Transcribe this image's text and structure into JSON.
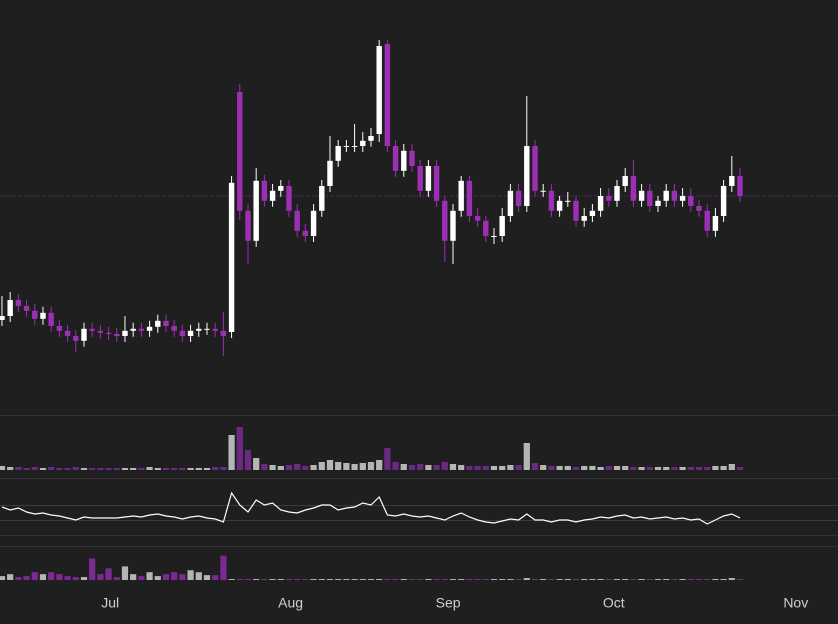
{
  "chart_data": [
    {
      "type": "candlestick",
      "x": [
        0,
        1,
        2,
        3,
        4,
        5,
        6,
        7,
        8,
        9,
        10,
        11,
        12,
        13,
        14,
        15,
        16,
        17,
        18,
        19,
        20,
        21,
        22,
        23,
        24,
        25,
        26,
        27,
        28,
        29,
        30,
        31,
        32,
        33,
        34,
        35,
        36,
        37,
        38,
        39,
        40,
        41,
        42,
        43,
        44,
        45,
        46,
        47,
        48,
        49,
        50,
        51,
        52,
        53,
        54,
        55,
        56,
        57,
        58,
        59,
        60,
        61,
        62,
        63,
        64,
        65,
        66,
        67,
        68,
        69,
        70,
        71,
        72,
        73,
        74,
        75,
        76,
        77,
        78,
        79,
        80,
        81,
        82,
        83,
        84,
        85,
        86,
        87,
        88,
        89,
        90
      ],
      "open": [
        24,
        25,
        29,
        27.5,
        26.3,
        24.3,
        25.8,
        22.5,
        21.3,
        20,
        18.8,
        21.8,
        21.3,
        20.8,
        20.5,
        20,
        21.3,
        21.8,
        21.3,
        22.3,
        23.8,
        22.5,
        21.3,
        20,
        21.3,
        21.8,
        21.8,
        21.3,
        21,
        81,
        51.3,
        43.8,
        58.8,
        53.8,
        56.3,
        57.5,
        51.3,
        46.3,
        45,
        51.3,
        57.5,
        63.8,
        67.5,
        67.5,
        67.5,
        68.8,
        70.5,
        93,
        67.5,
        61.3,
        66.3,
        62.5,
        56.3,
        62.5,
        53.8,
        43.8,
        51.3,
        58.8,
        50,
        48.8,
        45,
        45,
        50,
        56.3,
        52.5,
        67.5,
        56.3,
        56.3,
        51.3,
        53.8,
        53.8,
        48.8,
        50,
        51.3,
        55,
        53.8,
        57.5,
        60,
        53.8,
        56.3,
        52.5,
        53.8,
        56.3,
        53.8,
        55,
        52.5,
        51.3,
        46.3,
        50,
        57.5,
        60
      ],
      "high": [
        30,
        31,
        30.5,
        29,
        28,
        27.3,
        27.3,
        24,
        22.8,
        21.5,
        23.3,
        23.3,
        22.8,
        22.3,
        22,
        25,
        23.3,
        23.3,
        23.8,
        25.3,
        25.3,
        24,
        22.8,
        22.8,
        23.3,
        23.3,
        23.3,
        26,
        60,
        83,
        53,
        62,
        60.3,
        58,
        59,
        59,
        53,
        48,
        53,
        59,
        70,
        69,
        69,
        73,
        71,
        72,
        94,
        94,
        69,
        68,
        68,
        64,
        64,
        64,
        55,
        53,
        60,
        60,
        52,
        50,
        47,
        52,
        58,
        58,
        80,
        69,
        58,
        58,
        55,
        56,
        55,
        52,
        53,
        57,
        57,
        59,
        62,
        64,
        58,
        58,
        55,
        58,
        58,
        57,
        57,
        54,
        53,
        52,
        59,
        65,
        62
      ],
      "low": [
        22.5,
        23.5,
        26,
        24.8,
        22.8,
        22.8,
        21,
        19.8,
        18.5,
        16,
        17.3,
        19.8,
        19.3,
        19,
        18.5,
        18.5,
        19.8,
        19.8,
        19.8,
        20.8,
        21,
        19.8,
        18.5,
        18.5,
        19.8,
        20.3,
        19.8,
        15,
        19.5,
        49,
        38,
        42.3,
        52.3,
        52.3,
        54.8,
        49.8,
        44.8,
        43.5,
        43.5,
        49.8,
        56,
        62.3,
        66,
        66,
        66,
        67.3,
        68.5,
        66,
        59.8,
        59.8,
        61,
        54.8,
        54.8,
        52.3,
        38.5,
        38,
        49.8,
        48.5,
        47.3,
        43.5,
        43,
        43.5,
        48.5,
        51,
        51,
        54.8,
        54.8,
        49.8,
        49.8,
        52.3,
        47.3,
        47.3,
        48.5,
        49.8,
        52.3,
        52.3,
        56,
        52.3,
        52.3,
        51,
        51,
        52.3,
        52.3,
        52.3,
        51,
        49.8,
        44.8,
        44.8,
        48.5,
        56,
        53.5
      ],
      "close": [
        25,
        29,
        27.5,
        26.3,
        24.3,
        25.8,
        22.5,
        21.3,
        20,
        18.8,
        21.8,
        21.3,
        20.8,
        20.5,
        20,
        21.3,
        21.8,
        21.3,
        22.3,
        23.8,
        22.5,
        21.3,
        20,
        21.3,
        21.8,
        21.8,
        21.3,
        20,
        58.3,
        51.3,
        43.8,
        58.8,
        53.8,
        56.3,
        57.5,
        51.3,
        46.3,
        45,
        51.3,
        57.5,
        63.8,
        67.5,
        67.5,
        67.5,
        68.8,
        70,
        92.5,
        67.5,
        61.3,
        66.3,
        62.5,
        56.3,
        62.5,
        53.8,
        43.8,
        51.3,
        58.8,
        50,
        48.8,
        45,
        45,
        50,
        56.3,
        52.5,
        67.5,
        56.3,
        56.3,
        51.3,
        53.8,
        53.8,
        48.8,
        50,
        51.3,
        55,
        53.8,
        57.5,
        60,
        53.8,
        56.3,
        52.5,
        53.8,
        56.3,
        53.8,
        55,
        52.5,
        51.3,
        46.3,
        50,
        57.5,
        60,
        55
      ],
      "xlim": [
        -0.24,
        101.95
      ],
      "xticks": [
        {
          "value": 13.2,
          "label": "Jul"
        },
        {
          "value": 35.2,
          "label": "Aug"
        },
        {
          "value": 54.4,
          "label": "Sep"
        },
        {
          "value": 74.6,
          "label": "Oct"
        },
        {
          "value": 96.8,
          "label": "Nov"
        }
      ],
      "ylim": [
        0,
        104
      ],
      "up_color": "#ffffff",
      "down_color": "#9c2fb3"
    },
    {
      "type": "bar",
      "values": [
        4,
        3,
        3,
        2,
        3,
        2,
        3,
        2,
        2,
        3,
        2,
        2,
        2,
        2,
        2,
        2,
        2,
        2,
        3,
        2,
        2,
        2,
        2,
        2,
        2,
        2,
        3,
        3,
        35,
        43,
        20,
        12,
        6,
        5,
        4,
        5,
        6,
        4,
        5,
        8,
        10,
        8,
        7,
        6,
        7,
        8,
        10,
        22,
        8,
        6,
        5,
        6,
        5,
        5,
        8,
        6,
        5,
        4,
        4,
        4,
        4,
        4,
        5,
        5,
        27,
        7,
        5,
        4,
        4,
        4,
        3,
        4,
        4,
        3,
        4,
        4,
        4,
        3,
        3,
        3,
        3,
        3,
        3,
        3,
        3,
        3,
        3,
        4,
        4,
        6,
        3
      ],
      "ylim": [
        0,
        55
      ],
      "up_color": "#b5b5b5",
      "down_color": "#6b2a82"
    },
    {
      "type": "line",
      "values": [
        28,
        25,
        27,
        23,
        21,
        22,
        20,
        19,
        17,
        15,
        18,
        17,
        17,
        17,
        17,
        18,
        19,
        18,
        20,
        21,
        19,
        18,
        16,
        18,
        19,
        17,
        16,
        13,
        42,
        30,
        23,
        35,
        30,
        32,
        25,
        23,
        22,
        25,
        27,
        30,
        30,
        25,
        27,
        28,
        32,
        30,
        38,
        20,
        19,
        21,
        19,
        18,
        19,
        17,
        15,
        19,
        22,
        18,
        15,
        13,
        12,
        14,
        16,
        15,
        21,
        15,
        15,
        13,
        15,
        15,
        13,
        15,
        16,
        18,
        17,
        19,
        20,
        17,
        18,
        16,
        17,
        18,
        16,
        17,
        15,
        16,
        11,
        15,
        19,
        21,
        17
      ],
      "ylim": [
        0,
        57
      ],
      "color": "#ffffff"
    },
    {
      "type": "bar",
      "values": [
        4,
        6,
        3,
        4,
        8,
        6,
        8,
        6,
        4,
        3,
        3,
        22,
        6,
        12,
        3,
        14,
        6,
        4,
        8,
        4,
        6,
        8,
        6,
        10,
        8,
        5,
        5,
        25,
        1,
        1,
        1,
        1,
        1,
        1,
        1,
        1,
        1,
        1,
        1,
        1,
        1,
        1,
        1,
        1,
        1,
        1,
        1,
        1,
        1,
        1,
        1,
        1,
        1,
        1,
        1,
        1,
        1,
        1,
        1,
        1,
        1,
        1,
        1,
        1,
        2,
        1,
        1,
        1,
        1,
        1,
        1,
        1,
        1,
        1,
        1,
        1,
        1,
        1,
        1,
        1,
        1,
        1,
        1,
        1,
        1,
        1,
        1,
        1,
        1,
        2,
        1
      ],
      "ylim": [
        0,
        35
      ],
      "up_color": "#b5b5b5",
      "down_color": "#7a2a90"
    }
  ]
}
